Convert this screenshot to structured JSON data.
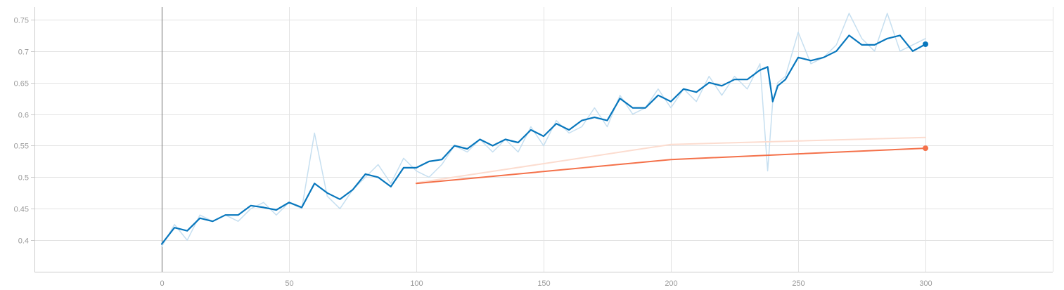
{
  "chart_data": {
    "type": "line",
    "title": "",
    "xlabel": "",
    "ylabel": "",
    "xlim": [
      -50,
      350
    ],
    "ylim": [
      0.35,
      0.77
    ],
    "grid": true,
    "x_ticks": [
      0,
      50,
      100,
      150,
      200,
      250,
      300
    ],
    "x_tick_labels": [
      "0",
      "50",
      "100",
      "150",
      "200",
      "250",
      "300"
    ],
    "y_ticks": [
      0.4,
      0.45,
      0.5,
      0.55,
      0.6,
      0.65,
      0.7,
      0.75
    ],
    "y_tick_labels": [
      "0.4",
      "0.45",
      "0.5",
      "0.55",
      "0.6",
      "0.65",
      "0.7",
      "0.75"
    ],
    "colors": {
      "blue_smoothed": "#0877bd",
      "blue_raw": "#c6dff0",
      "orange_smoothed": "#f4714a",
      "orange_raw": "#fcdccf",
      "zero_line": "#8a8a8a"
    },
    "series": [
      {
        "key": "blue_raw",
        "x": [
          0,
          5,
          10,
          15,
          20,
          25,
          30,
          35,
          40,
          45,
          50,
          55,
          60,
          65,
          70,
          75,
          80,
          85,
          90,
          95,
          100,
          105,
          110,
          115,
          120,
          125,
          130,
          135,
          140,
          145,
          150,
          155,
          160,
          165,
          170,
          175,
          180,
          185,
          190,
          195,
          200,
          205,
          210,
          215,
          220,
          225,
          230,
          235,
          238,
          240,
          242,
          245,
          250,
          255,
          260,
          265,
          270,
          275,
          280,
          285,
          290,
          295,
          300
        ],
        "y": [
          0.39,
          0.425,
          0.4,
          0.44,
          0.43,
          0.44,
          0.43,
          0.45,
          0.46,
          0.44,
          0.46,
          0.45,
          0.57,
          0.47,
          0.45,
          0.48,
          0.5,
          0.52,
          0.49,
          0.53,
          0.51,
          0.5,
          0.52,
          0.55,
          0.54,
          0.56,
          0.54,
          0.56,
          0.54,
          0.58,
          0.55,
          0.59,
          0.57,
          0.58,
          0.61,
          0.58,
          0.63,
          0.6,
          0.61,
          0.64,
          0.61,
          0.64,
          0.62,
          0.66,
          0.63,
          0.66,
          0.64,
          0.68,
          0.51,
          0.62,
          0.65,
          0.66,
          0.73,
          0.68,
          0.69,
          0.71,
          0.76,
          0.72,
          0.7,
          0.76,
          0.7,
          0.71,
          0.72
        ]
      },
      {
        "key": "blue_smoothed",
        "x": [
          0,
          5,
          10,
          15,
          20,
          25,
          30,
          35,
          40,
          45,
          50,
          55,
          60,
          65,
          70,
          75,
          80,
          85,
          90,
          95,
          100,
          105,
          110,
          115,
          120,
          125,
          130,
          135,
          140,
          145,
          150,
          155,
          160,
          165,
          170,
          175,
          180,
          185,
          190,
          195,
          200,
          205,
          210,
          215,
          220,
          225,
          230,
          235,
          238,
          240,
          242,
          245,
          250,
          255,
          260,
          265,
          270,
          275,
          280,
          285,
          290,
          295,
          300
        ],
        "y": [
          0.394,
          0.42,
          0.415,
          0.435,
          0.43,
          0.44,
          0.44,
          0.455,
          0.452,
          0.448,
          0.46,
          0.452,
          0.49,
          0.475,
          0.465,
          0.48,
          0.505,
          0.5,
          0.485,
          0.515,
          0.515,
          0.525,
          0.528,
          0.55,
          0.545,
          0.56,
          0.55,
          0.56,
          0.555,
          0.575,
          0.565,
          0.585,
          0.575,
          0.59,
          0.595,
          0.59,
          0.625,
          0.61,
          0.61,
          0.63,
          0.62,
          0.64,
          0.635,
          0.65,
          0.645,
          0.655,
          0.655,
          0.67,
          0.675,
          0.62,
          0.645,
          0.655,
          0.69,
          0.685,
          0.69,
          0.7,
          0.725,
          0.71,
          0.71,
          0.72,
          0.725,
          0.7,
          0.711
        ]
      },
      {
        "key": "orange_raw",
        "x": [
          100,
          200,
          300
        ],
        "y": [
          0.491,
          0.552,
          0.563
        ]
      },
      {
        "key": "orange_smoothed",
        "x": [
          100,
          200,
          300
        ],
        "y": [
          0.49,
          0.528,
          0.546
        ]
      }
    ]
  }
}
